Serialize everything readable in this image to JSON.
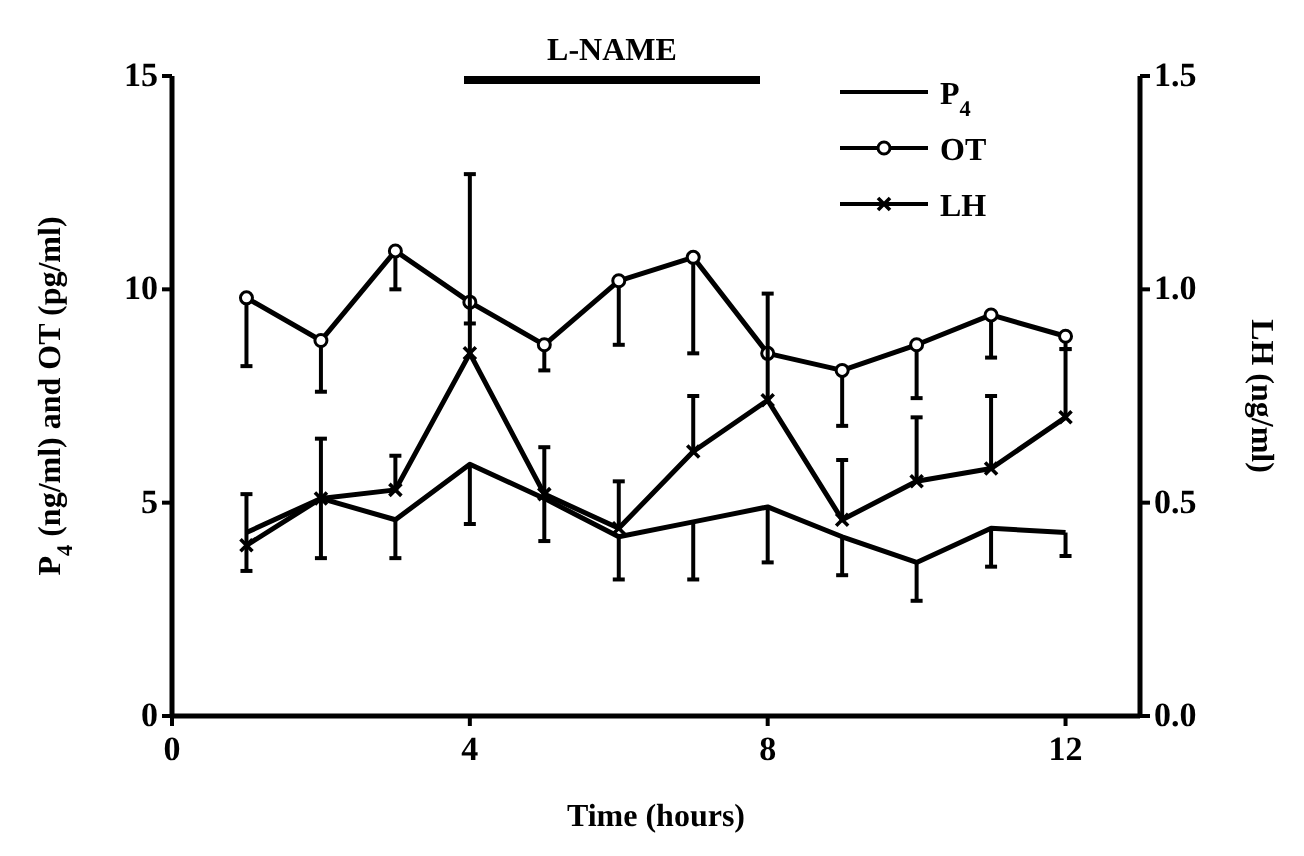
{
  "chart_data": {
    "type": "line",
    "xlabel": "Time (hours)",
    "ylabel": "P$_{4}$ (ng/ml) and OT (pg/ml)",
    "y2label": "LH (ng/ml)",
    "x": [
      1,
      2,
      3,
      4,
      5,
      6,
      7,
      8,
      9,
      10,
      11,
      12
    ],
    "xlim": [
      0,
      13
    ],
    "xticks": [
      0,
      4,
      8,
      12
    ],
    "ylim": [
      0,
      15
    ],
    "yticks": [
      0,
      5,
      10,
      15
    ],
    "y2lim": [
      0,
      1.5
    ],
    "y2ticks": [
      {
        "value": 0,
        "label": "0.0"
      },
      0.5,
      {
        "value": 1,
        "label": "1.0"
      },
      1.5
    ],
    "legend": "top right",
    "grid": false,
    "annotations": [
      "L-NAME"
    ],
    "series": [
      {
        "name": "P$_{4}$",
        "color": "#000000",
        "marker": "none",
        "values": [
          4.3,
          5.1,
          4.6,
          5.9,
          5.1,
          4.2,
          4.55,
          4.9,
          4.2,
          3.6,
          4.4,
          4.3
        ],
        "errors": [
          [
            3.4,
            5.2
          ],
          [
            3.7,
            6.5
          ],
          [
            3.7,
            4.6
          ],
          [
            4.5,
            5.9
          ],
          [
            4.1,
            5.1
          ],
          [
            3.2,
            4.2
          ],
          [
            3.2,
            4.55
          ],
          [
            3.6,
            4.9
          ],
          [
            3.3,
            4.2
          ],
          [
            2.7,
            3.6
          ],
          [
            3.5,
            4.4
          ],
          [
            3.75,
            4.3
          ]
        ]
      },
      {
        "name": "OT",
        "color": "#000000",
        "marker": "circle",
        "values": [
          9.8,
          8.8,
          10.9,
          9.7,
          8.7,
          10.2,
          10.75,
          8.5,
          8.1,
          8.7,
          9.4,
          8.9
        ],
        "errors": [
          [
            8.2,
            9.8
          ],
          [
            7.6,
            8.8
          ],
          [
            10.0,
            10.9
          ],
          [
            9.2,
            9.7
          ],
          [
            8.1,
            8.7
          ],
          [
            8.7,
            10.2
          ],
          [
            8.5,
            10.75
          ],
          [
            8.5,
            8.5
          ],
          [
            6.8,
            8.1
          ],
          [
            7.45,
            8.7
          ],
          [
            8.4,
            9.4
          ],
          [
            8.6,
            8.9
          ]
        ]
      },
      {
        "name": "LH",
        "color": "#000000",
        "marker": "cross",
        "axis": "y2",
        "values": [
          0.4,
          0.51,
          0.53,
          0.85,
          0.52,
          0.44,
          0.62,
          0.74,
          0.46,
          0.55,
          0.58,
          0.7
        ],
        "errors": [
          [
            0.4,
            0.4
          ],
          [
            0.51,
            0.51
          ],
          [
            0.53,
            0.61
          ],
          [
            0.85,
            1.27
          ],
          [
            0.52,
            0.63
          ],
          [
            0.44,
            0.55
          ],
          [
            0.62,
            0.75
          ],
          [
            0.74,
            0.99
          ],
          [
            0.46,
            0.6
          ],
          [
            0.55,
            0.7
          ],
          [
            0.58,
            0.75
          ],
          [
            0.7,
            0.86
          ]
        ]
      }
    ]
  }
}
